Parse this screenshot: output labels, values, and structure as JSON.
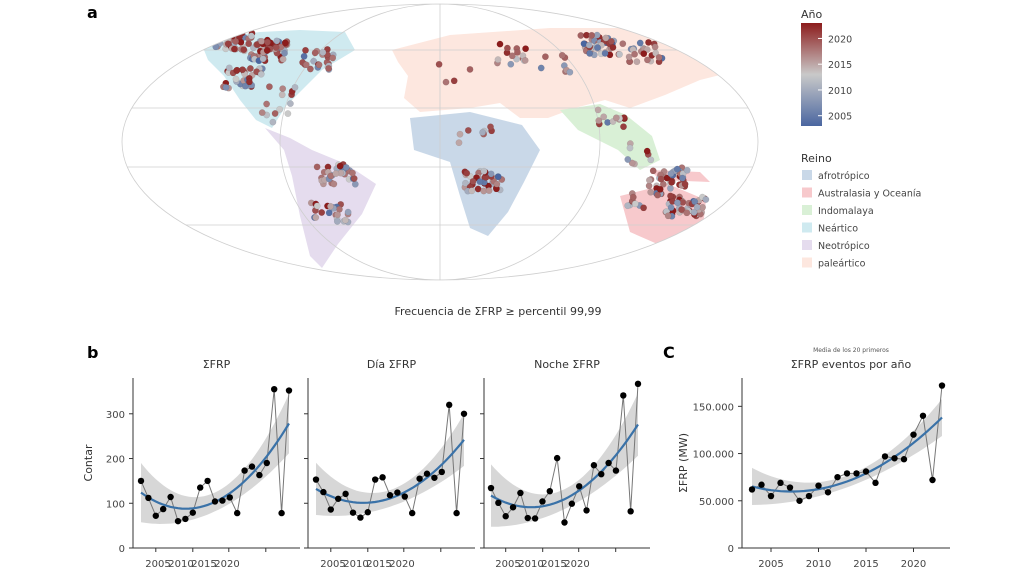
{
  "panel_labels": {
    "a": "a",
    "b": "b",
    "c": "C"
  },
  "map": {
    "caption": "Frecuencia de ΣFRP ≥ percentil 99,99",
    "colorbar": {
      "title": "Año",
      "ticks": [
        "2005",
        "2010",
        "2015",
        "2020"
      ],
      "range": [
        2003,
        2023
      ],
      "colors": {
        "low": "#4a66a0",
        "mid": "#c9c9c9",
        "high": "#8c1c1c"
      }
    },
    "realm_legend": {
      "title": "Reino",
      "items": [
        {
          "label": "afrotrópico",
          "color": "#c9d8e8"
        },
        {
          "label": "Australasia y Oceanía",
          "color": "#f7c9cc"
        },
        {
          "label": "Indomalaya",
          "color": "#d9f0d6"
        },
        {
          "label": "Neártico",
          "color": "#cfeaf0"
        },
        {
          "label": "Neotrópico",
          "color": "#e5dcee"
        },
        {
          "label": "paleártico",
          "color": "#fde7df"
        }
      ]
    },
    "fire_clusters": [
      {
        "lon": -135,
        "lat": 62,
        "n": 35
      },
      {
        "lon": -110,
        "lat": 57,
        "n": 60
      },
      {
        "lon": -78,
        "lat": 52,
        "n": 25
      },
      {
        "lon": -120,
        "lat": 41,
        "n": 35
      },
      {
        "lon": -95,
        "lat": 32,
        "n": 8
      },
      {
        "lon": -98,
        "lat": 20,
        "n": 6
      },
      {
        "lon": -60,
        "lat": -14,
        "n": 35
      },
      {
        "lon": -66,
        "lat": -36,
        "n": 25
      },
      {
        "lon": 10,
        "lat": 44,
        "n": 4
      },
      {
        "lon": 45,
        "lat": 55,
        "n": 15
      },
      {
        "lon": 105,
        "lat": 60,
        "n": 45
      },
      {
        "lon": 130,
        "lat": 56,
        "n": 25
      },
      {
        "lon": 70,
        "lat": 50,
        "n": 8
      },
      {
        "lon": 20,
        "lat": 9,
        "n": 8
      },
      {
        "lon": 25,
        "lat": -18,
        "n": 40
      },
      {
        "lon": 100,
        "lat": 18,
        "n": 12
      },
      {
        "lon": 110,
        "lat": -2,
        "n": 8
      },
      {
        "lon": 132,
        "lat": -16,
        "n": 40
      },
      {
        "lon": 146,
        "lat": -32,
        "n": 45
      },
      {
        "lon": 120,
        "lat": -28,
        "n": 15
      }
    ]
  },
  "chart_data": [
    {
      "type": "line",
      "panel": "b",
      "title": "ΣFRP",
      "ylabel": "Contar",
      "xlabel": "",
      "x": [
        2003,
        2004,
        2005,
        2006,
        2007,
        2008,
        2009,
        2010,
        2011,
        2012,
        2013,
        2014,
        2015,
        2016,
        2017,
        2018,
        2019,
        2020,
        2021,
        2022,
        2023
      ],
      "values": [
        150,
        112,
        72,
        87,
        114,
        60,
        65,
        79,
        135,
        150,
        104,
        106,
        113,
        78,
        173,
        182,
        163,
        190,
        355,
        78,
        352
      ],
      "xticks": [
        "2005",
        "2010",
        "2015",
        "2020"
      ],
      "yticks": [
        "0",
        "100",
        "200",
        "300"
      ],
      "ylim": [
        0,
        380
      ],
      "trend": "quadratic fit with confidence band"
    },
    {
      "type": "line",
      "panel": "b",
      "title": "Día ΣFRP",
      "x": [
        2003,
        2004,
        2005,
        2006,
        2007,
        2008,
        2009,
        2010,
        2011,
        2012,
        2013,
        2014,
        2015,
        2016,
        2017,
        2018,
        2019,
        2020,
        2021,
        2022,
        2023
      ],
      "values": [
        153,
        125,
        86,
        110,
        121,
        79,
        68,
        80,
        153,
        158,
        118,
        124,
        115,
        78,
        155,
        166,
        157,
        170,
        320,
        78,
        300
      ],
      "xticks": [
        "2005",
        "2010",
        "2015",
        "2020"
      ],
      "ylim": [
        0,
        380
      ],
      "trend": "quadratic fit with confidence band"
    },
    {
      "type": "line",
      "panel": "b",
      "title": "Noche ΣFRP",
      "x": [
        2003,
        2004,
        2005,
        2006,
        2007,
        2008,
        2009,
        2010,
        2011,
        2012,
        2013,
        2014,
        2015,
        2016,
        2017,
        2018,
        2019,
        2020,
        2021,
        2022,
        2023
      ],
      "values": [
        134,
        101,
        71,
        91,
        123,
        67,
        66,
        104,
        127,
        201,
        57,
        99,
        138,
        84,
        185,
        165,
        190,
        173,
        341,
        82,
        367
      ],
      "xticks": [
        "2005",
        "2010",
        "2015",
        "2020"
      ],
      "ylim": [
        0,
        380
      ],
      "trend": "quadratic fit with confidence band"
    },
    {
      "type": "line",
      "panel": "c",
      "subtitle": "Media de los 20 primeros",
      "title": "ΣFRP eventos por año",
      "ylabel": "ΣFRP (MW)",
      "x": [
        2003,
        2004,
        2005,
        2006,
        2007,
        2008,
        2009,
        2010,
        2011,
        2012,
        2013,
        2014,
        2015,
        2016,
        2017,
        2018,
        2019,
        2020,
        2021,
        2022,
        2023
      ],
      "values": [
        62000,
        67000,
        55000,
        69000,
        64000,
        50000,
        55000,
        66000,
        59000,
        75000,
        79000,
        79000,
        81000,
        69000,
        97000,
        95000,
        94000,
        120000,
        140000,
        72000,
        172000
      ],
      "xticks": [
        "2005",
        "2010",
        "2015",
        "2020"
      ],
      "yticks": [
        "0",
        "50.000",
        "100.000",
        "150.000"
      ],
      "ylim": [
        0,
        180000
      ],
      "trend": "quadratic fit with confidence band"
    }
  ]
}
